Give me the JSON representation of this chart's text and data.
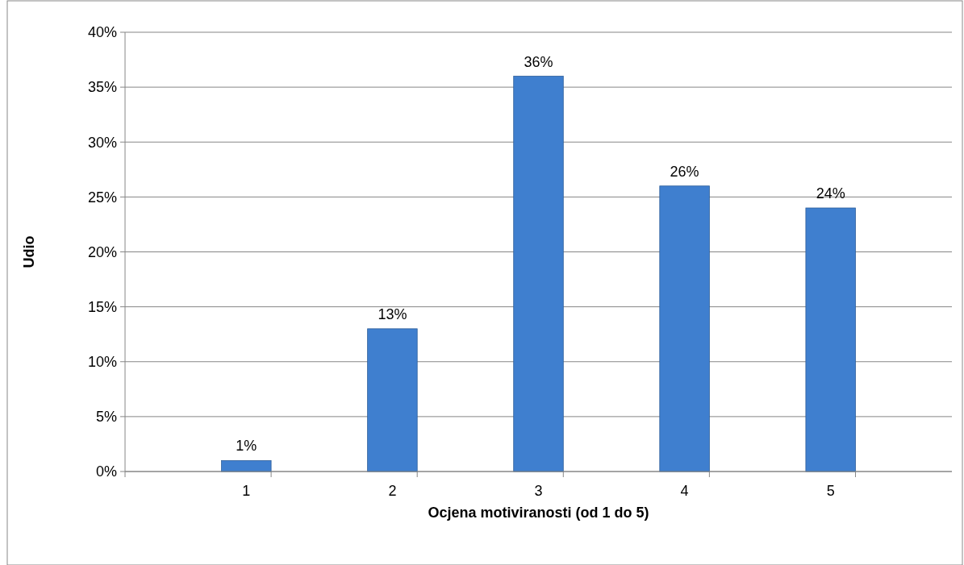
{
  "chart_data": {
    "type": "bar",
    "xlabel": "Ocjena motiviranosti (od 1 do 5)",
    "ylabel": "Udio",
    "categories": [
      "1",
      "2",
      "3",
      "4",
      "5"
    ],
    "values": [
      1,
      13,
      36,
      26,
      24
    ],
    "value_labels": [
      "1%",
      "13%",
      "36%",
      "26%",
      "24%"
    ],
    "color": "#3f7fcf",
    "ylim": [
      0,
      40
    ],
    "yticks": [
      {
        "value": 0,
        "label": "0%"
      },
      {
        "value": 5,
        "label": "5%"
      },
      {
        "value": 10,
        "label": "10%"
      },
      {
        "value": 15,
        "label": "15%"
      },
      {
        "value": 20,
        "label": "20%"
      },
      {
        "value": 25,
        "label": "25%"
      },
      {
        "value": 30,
        "label": "30%"
      },
      {
        "value": 35,
        "label": "35%"
      },
      {
        "value": 40,
        "label": "40%"
      }
    ],
    "grid": "y"
  }
}
